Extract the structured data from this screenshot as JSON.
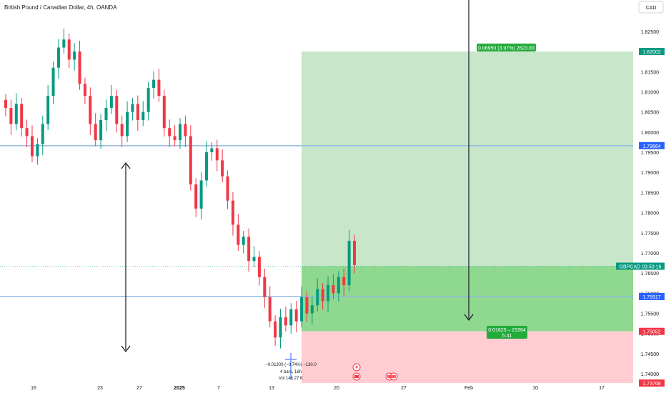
{
  "header": {
    "title": "British Pound / Canadian Dollar, 4h, OANDA",
    "currency": "CAD"
  },
  "colors": {
    "up": "#089981",
    "down": "#f23645",
    "profit_zone": "#c8e6c9",
    "entry_zone": "#8fd88f",
    "loss_zone": "#ffcdd2",
    "hline": "#90b8e0",
    "label_blue": "#2962ff",
    "label_green": "#089981",
    "label_red": "#f23645",
    "profit_label_bg": "#22ab3a"
  },
  "chart_data": {
    "type": "candlestick",
    "symbol": "GBPCAD",
    "interval": "4h",
    "ylim": [
      1.738,
      1.83
    ],
    "x_ticks": [
      "16",
      "23",
      "27",
      "2025",
      "7",
      "13",
      "20",
      "27",
      "Feb",
      "10",
      "17"
    ],
    "y_ticks": [
      "1.82500",
      "1.82000",
      "1.81500",
      "1.81000",
      "1.80500",
      "1.80000",
      "1.79500",
      "1.79000",
      "1.78500",
      "1.78000",
      "1.77500",
      "1.77000",
      "1.76500",
      "1.76000",
      "1.75500",
      "1.75000",
      "1.74500",
      "1.74000"
    ],
    "y_tick_values": [
      1.825,
      1.82,
      1.815,
      1.81,
      1.805,
      1.8,
      1.795,
      1.79,
      1.785,
      1.78,
      1.775,
      1.77,
      1.765,
      1.76,
      1.755,
      1.75,
      1.745,
      1.74
    ],
    "closes": [
      1.806,
      1.802,
      1.807,
      1.801,
      1.799,
      1.794,
      1.797,
      1.802,
      1.809,
      1.816,
      1.821,
      1.823,
      1.818,
      1.82,
      1.812,
      1.809,
      1.802,
      1.798,
      1.803,
      1.806,
      1.809,
      1.802,
      1.799,
      1.805,
      1.807,
      1.803,
      1.805,
      1.811,
      1.813,
      1.809,
      1.801,
      1.799,
      1.798,
      1.802,
      1.799,
      1.787,
      1.781,
      1.788,
      1.795,
      1.796,
      1.793,
      1.789,
      1.783,
      1.777,
      1.772,
      1.774,
      1.768,
      1.769,
      1.764,
      1.759,
      1.753,
      1.749,
      1.754,
      1.752,
      1.756,
      1.753,
      1.759,
      1.755,
      1.757,
      1.761,
      1.758,
      1.762,
      1.76,
      1.764,
      1.762,
      1.773,
      1.767
    ],
    "levels": [
      {
        "label": "1.82002",
        "value": 1.82002,
        "color": "green"
      },
      {
        "label": "1.79664",
        "value": 1.79664,
        "color": "blue"
      },
      {
        "label": "1.75917",
        "value": 1.75917,
        "color": "blue"
      },
      {
        "label": "1.75052",
        "value": 1.75052,
        "color": "red"
      },
      {
        "label": "1.73768",
        "value": 1.73768,
        "color": "red"
      }
    ],
    "current_price": {
      "symbol": "GBPCAD",
      "countdown": "03:50:16",
      "value": 1.7667
    },
    "position": {
      "entry": 1.7667,
      "target": 1.82002,
      "stop": 1.75052,
      "stop_label_value": 1.73768
    },
    "annotations": {
      "target_label": "0.06950 (3.97%) 2623.83",
      "mid_label_line1": "0.01625 – 23364",
      "mid_label_line2": "5.41",
      "measure_line1": "−0.01300 (−0.74%) −130.0",
      "measure_line2": "4 bars, 16h",
      "measure_line3": "Vol 146.27 K"
    }
  }
}
